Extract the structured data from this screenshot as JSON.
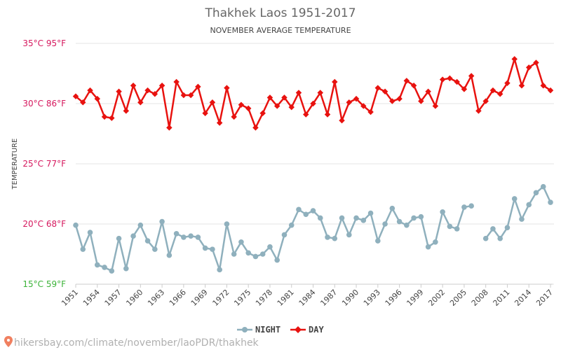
{
  "title": "Thakhek Laos 1951-2017",
  "subtitle": "NOVEMBER AVERAGE TEMPERATURE",
  "footer_url": "hikersbay.com/climate/november/laoPDR/thakhek",
  "colors": {
    "night": "#8fb0bd",
    "day": "#e8120f",
    "tick_hot": "#d6185e",
    "tick_cool": "#3cb339",
    "grid": "#e6e6e6"
  },
  "chart_data": {
    "type": "line",
    "title": "Thakhek Laos 1951-2017",
    "subtitle": "NOVEMBER AVERAGE TEMPERATURE",
    "xlabel": "",
    "ylabel": "TEMPERATURE",
    "ylim": [
      15,
      35
    ],
    "yticks": [
      {
        "value": 35,
        "label": "35°C 95°F"
      },
      {
        "value": 30,
        "label": "30°C 86°F"
      },
      {
        "value": 25,
        "label": "25°C 77°F"
      },
      {
        "value": 20,
        "label": "20°C 68°F"
      },
      {
        "value": 15,
        "label": "15°C 59°F"
      }
    ],
    "xlim": [
      1951,
      2017
    ],
    "xticks": [
      1951,
      1954,
      1957,
      1960,
      1963,
      1966,
      1969,
      1972,
      1975,
      1978,
      1981,
      1984,
      1987,
      1990,
      1993,
      1996,
      1999,
      2002,
      2005,
      2008,
      2011,
      2014,
      2017
    ],
    "grid": true,
    "legend_position": "bottom-center",
    "x": [
      1951,
      1952,
      1953,
      1954,
      1955,
      1956,
      1957,
      1958,
      1959,
      1960,
      1961,
      1962,
      1963,
      1964,
      1965,
      1966,
      1967,
      1968,
      1969,
      1970,
      1971,
      1972,
      1973,
      1974,
      1975,
      1976,
      1977,
      1978,
      1979,
      1980,
      1981,
      1982,
      1983,
      1984,
      1985,
      1986,
      1987,
      1988,
      1989,
      1990,
      1991,
      1992,
      1993,
      1994,
      1995,
      1996,
      1997,
      1998,
      1999,
      2000,
      2001,
      2002,
      2003,
      2004,
      2005,
      2006,
      2007,
      2008,
      2009,
      2010,
      2011,
      2012,
      2013,
      2014,
      2015,
      2016,
      2017
    ],
    "series": [
      {
        "name": "NIGHT",
        "color": "#8fb0bd",
        "values": [
          19.9,
          17.9,
          19.3,
          16.6,
          16.4,
          16.1,
          18.8,
          16.3,
          19.0,
          19.9,
          18.6,
          17.9,
          20.2,
          17.4,
          19.2,
          18.9,
          19.0,
          18.9,
          18.0,
          17.9,
          16.2,
          20.0,
          17.5,
          18.5,
          17.6,
          17.3,
          17.5,
          18.1,
          17.0,
          19.1,
          19.9,
          21.2,
          20.8,
          21.1,
          20.5,
          18.9,
          18.8,
          20.5,
          19.1,
          20.5,
          20.3,
          20.9,
          18.6,
          20.0,
          21.3,
          20.2,
          19.9,
          20.5,
          20.6,
          18.1,
          18.5,
          21.0,
          19.8,
          19.6,
          21.4,
          21.5,
          null,
          18.8,
          19.6,
          18.8,
          19.7,
          22.1,
          20.4,
          21.6,
          22.6,
          23.1,
          21.8
        ]
      },
      {
        "name": "DAY",
        "color": "#e8120f",
        "values": [
          30.6,
          30.1,
          31.1,
          30.4,
          28.9,
          28.8,
          31.0,
          29.4,
          31.5,
          30.1,
          31.1,
          30.8,
          31.5,
          28.0,
          31.8,
          30.7,
          30.7,
          31.4,
          29.2,
          30.1,
          28.4,
          31.3,
          28.9,
          29.9,
          29.6,
          28.0,
          29.2,
          30.5,
          29.8,
          30.5,
          29.7,
          30.9,
          29.1,
          30.0,
          30.9,
          29.1,
          31.8,
          28.6,
          30.1,
          30.4,
          29.8,
          29.3,
          31.3,
          31.0,
          30.2,
          30.4,
          31.9,
          31.5,
          30.2,
          31.0,
          29.8,
          32.0,
          32.1,
          31.8,
          31.2,
          32.3,
          29.4,
          30.2,
          31.1,
          30.8,
          31.7,
          33.7,
          31.5,
          33.0,
          33.4,
          31.5,
          31.1
        ]
      }
    ]
  }
}
